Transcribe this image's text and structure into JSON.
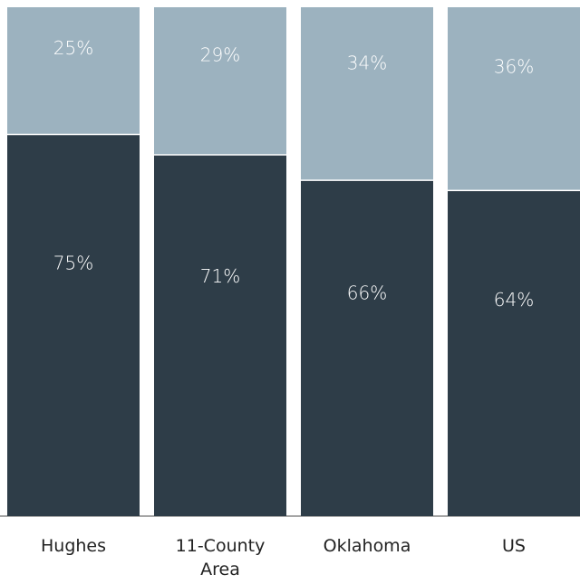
{
  "chart_data": {
    "type": "stacked_bar",
    "categories": [
      "Hughes",
      "11-County Area",
      "Oklahoma",
      "US"
    ],
    "series": [
      {
        "color": "#2e3d48",
        "values": [
          75,
          71,
          66,
          64
        ],
        "value_labels": [
          "75%",
          "71%",
          "66%",
          "64%"
        ]
      },
      {
        "color": "#9cb2bf",
        "values": [
          25,
          29,
          34,
          36
        ],
        "value_labels": [
          "25%",
          "29%",
          "34%",
          "36%"
        ]
      }
    ],
    "ylim": [
      0,
      100
    ]
  }
}
